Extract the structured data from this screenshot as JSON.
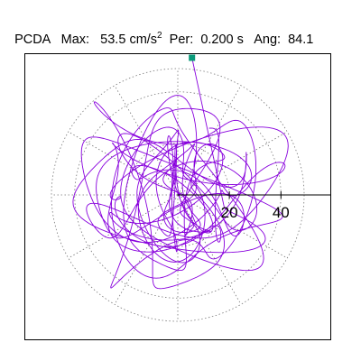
{
  "header": {
    "title": "PCDA",
    "max_label": "Max:",
    "max_value": "53.5",
    "max_unit": "cm/s",
    "max_unit_exp": "2",
    "per_label": "Per:",
    "per_value": "0.200 s",
    "ang_label": "Ang:",
    "ang_value": "84.1"
  },
  "chart_data": {
    "type": "polar-orbit",
    "radial_ticks": [
      20,
      40
    ],
    "radial_range": [
      0,
      53.5
    ],
    "gridline_circles": [
      20,
      40
    ],
    "gridline_spokes_deg": [
      0,
      30,
      60,
      90,
      120,
      150,
      180,
      210,
      240,
      270,
      300,
      330
    ],
    "peak": {
      "magnitude": 53.5,
      "angle_deg": 84.1
    },
    "colors": {
      "trace": "#8800dd",
      "peak_marker": "#0b9a7a",
      "grid": "#777777",
      "frame": "#000000"
    }
  }
}
